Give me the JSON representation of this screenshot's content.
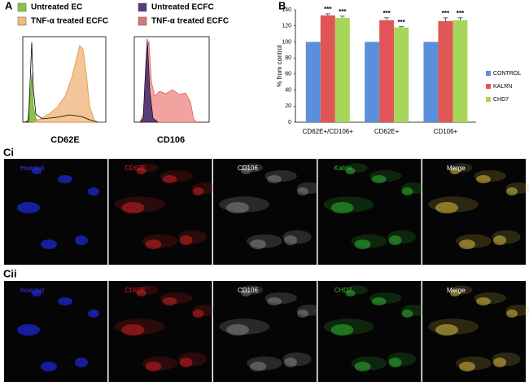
{
  "panel_a": {
    "label": "A",
    "legend": [
      "Untreated EC",
      "TNF-α treated ECFC",
      "Untreated ECFC",
      "TNF-α treated ECFC"
    ],
    "x_labels": [
      "CD62E",
      "CD106"
    ]
  },
  "chart_data": {
    "type": "bar",
    "label": "B",
    "ylabel": "% from control",
    "categories": [
      "CD62E+/CD106+",
      "CD62E+",
      "CD106+"
    ],
    "series": [
      {
        "name": "CONTROL",
        "color": "#5b8fd9",
        "values": [
          100,
          100,
          100
        ],
        "errors": [
          0,
          0,
          0
        ]
      },
      {
        "name": "KALRN",
        "color": "#e05555",
        "values": [
          133,
          127,
          126
        ],
        "errors": [
          2,
          3,
          4
        ],
        "significance": [
          "***",
          "***",
          "***"
        ]
      },
      {
        "name": "CHD7",
        "color": "#a8d65a",
        "values": [
          130,
          118,
          127
        ],
        "errors": [
          2,
          1,
          3
        ],
        "significance": [
          "***",
          "***",
          "***"
        ]
      }
    ],
    "ylim": [
      0,
      140
    ],
    "yticks": [
      0,
      20,
      40,
      60,
      80,
      100,
      120,
      140
    ]
  },
  "panel_ci": {
    "label": "Ci",
    "channels": [
      "Hoechst",
      "CD62E",
      "CD106",
      "Kalirin",
      "Merge"
    ]
  },
  "panel_cii": {
    "label": "Cii",
    "channels": [
      "Hoechst",
      "CD62E",
      "CD106",
      "CHD7",
      "Merge"
    ]
  }
}
